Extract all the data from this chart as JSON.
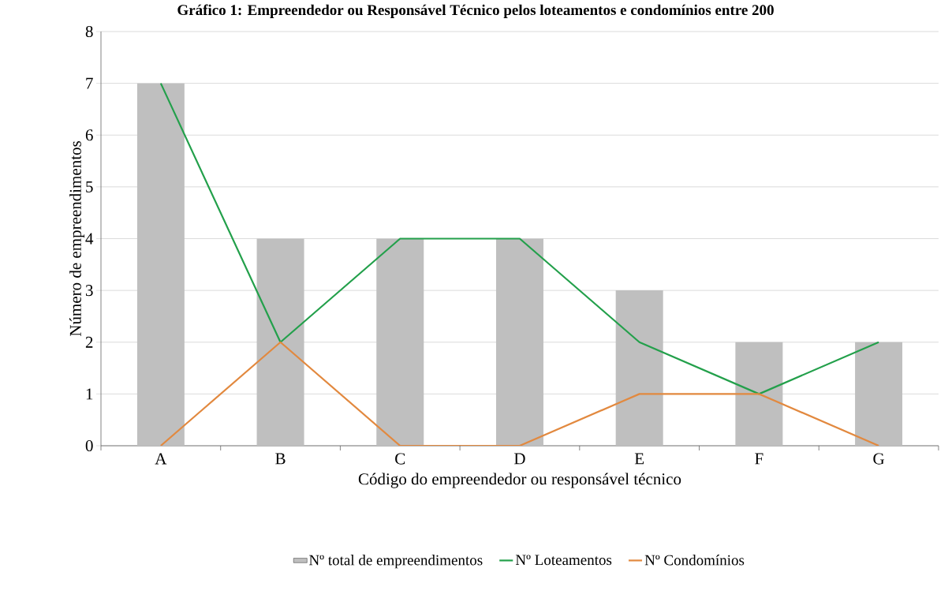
{
  "chart_data": {
    "type": "bar",
    "title": "Gráfico 1: Empreendedor ou Responsável Técnico pelos loteamentos e condomínios entre 200",
    "xlabel": "Código do empreendedor ou responsável técnico",
    "ylabel": "Número de empreendimentos",
    "categories": [
      "A",
      "B",
      "C",
      "D",
      "E",
      "F",
      "G"
    ],
    "series": [
      {
        "name": "Nº total de empreendimentos",
        "color": "#bfbfbf",
        "values": [
          7,
          4,
          4,
          4,
          3,
          2,
          2
        ]
      },
      {
        "name": "Nº Loteamentos",
        "type": "line",
        "color": "#23a04b",
        "values": [
          7,
          2,
          4,
          4,
          2,
          1,
          2
        ]
      },
      {
        "name": "Nº Condomínios",
        "type": "line",
        "color": "#e2893f",
        "values": [
          0,
          2,
          0,
          0,
          1,
          1,
          0
        ]
      }
    ],
    "ylim": [
      0,
      8
    ],
    "yticks": [
      0,
      1,
      2,
      3,
      4,
      5,
      6,
      7,
      8
    ],
    "grid": "y",
    "legend": "bottom"
  }
}
